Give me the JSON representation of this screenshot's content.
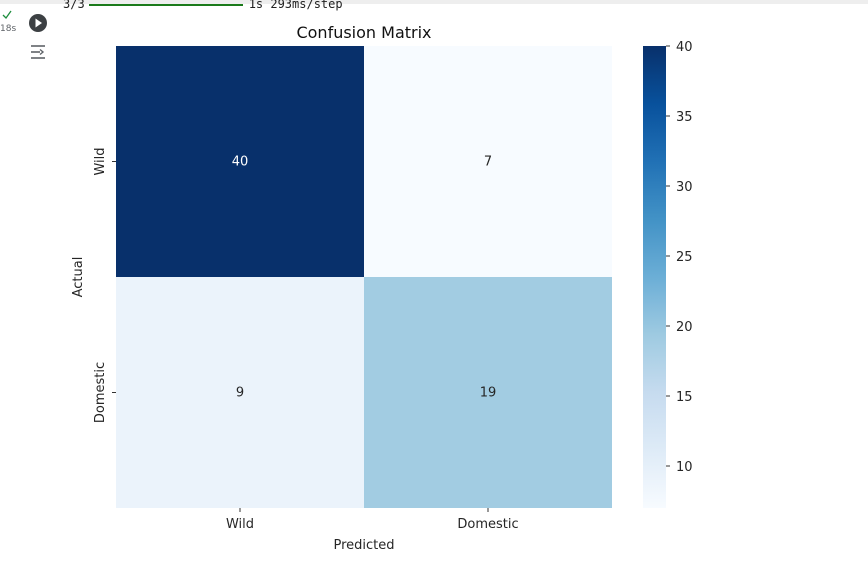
{
  "cell_gutter": {
    "status": "success",
    "exec_time": "18s",
    "run_icon": "play-circle-icon",
    "output_icon": "output-toggle-icon"
  },
  "output": {
    "progress_count": "3/3",
    "progress_time": "1s 293ms/step"
  },
  "chart_data": {
    "type": "heatmap",
    "title": "Confusion Matrix",
    "xlabel": "Predicted",
    "ylabel": "Actual",
    "x_categories": [
      "Wild",
      "Domestic"
    ],
    "y_categories": [
      "Wild",
      "Domestic"
    ],
    "values": [
      [
        40,
        7
      ],
      [
        9,
        19
      ]
    ],
    "annotations": true,
    "colormap": "Blues",
    "vmin": 7,
    "vmax": 40,
    "colorbar_ticks": [
      10,
      15,
      20,
      25,
      30,
      35,
      40
    ],
    "colors": {
      "low": "#f7fbff",
      "high": "#08306b"
    }
  }
}
